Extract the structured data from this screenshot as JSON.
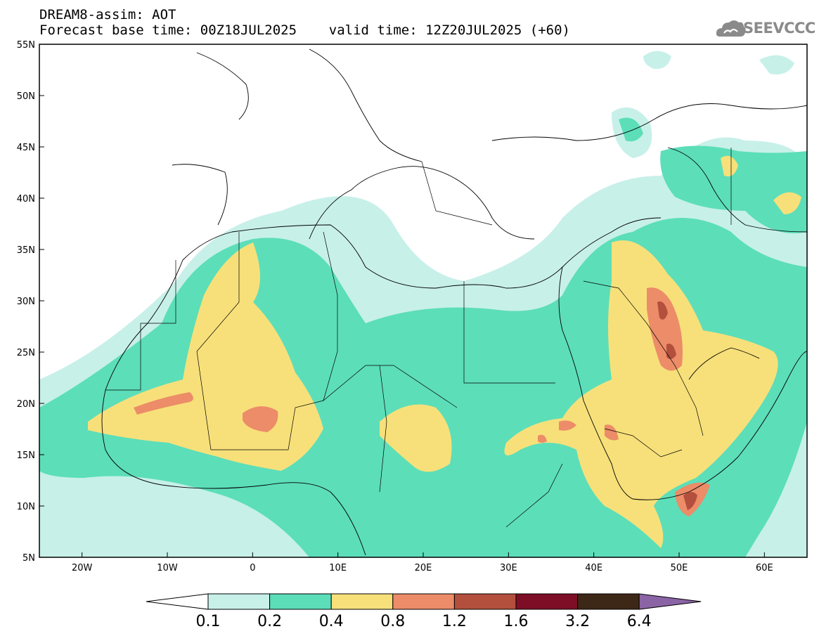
{
  "header": {
    "title_line1": "DREAM8-assim: AOT",
    "title_line2": "Forecast base time: 00Z18JUL2025    valid time: 12Z20JUL2025 (+60)"
  },
  "logo": {
    "text": "SEEVCCC",
    "icon": "cloud-icon",
    "color": "#8a8a8a"
  },
  "map": {
    "lon_range": [
      -25,
      65
    ],
    "lat_range": [
      5,
      55
    ],
    "lon_ticks": [
      {
        "value": -20,
        "label": "20W"
      },
      {
        "value": -10,
        "label": "10W"
      },
      {
        "value": 0,
        "label": "0"
      },
      {
        "value": 10,
        "label": "10E"
      },
      {
        "value": 20,
        "label": "20E"
      },
      {
        "value": 30,
        "label": "30E"
      },
      {
        "value": 40,
        "label": "40E"
      },
      {
        "value": 50,
        "label": "50E"
      },
      {
        "value": 60,
        "label": "60E"
      }
    ],
    "lat_ticks": [
      {
        "value": 55,
        "label": "55N"
      },
      {
        "value": 50,
        "label": "50N"
      },
      {
        "value": 45,
        "label": "45N"
      },
      {
        "value": 40,
        "label": "40N"
      },
      {
        "value": 35,
        "label": "35N"
      },
      {
        "value": 30,
        "label": "30N"
      },
      {
        "value": 25,
        "label": "25N"
      },
      {
        "value": 20,
        "label": "20N"
      },
      {
        "value": 15,
        "label": "15N"
      },
      {
        "value": 10,
        "label": "10N"
      },
      {
        "value": 5,
        "label": "5N"
      }
    ]
  },
  "colorbar": {
    "colors": [
      "#c7f0e9",
      "#5cdeb9",
      "#f7e07a",
      "#ec8c68",
      "#b34f3d",
      "#7e0e26",
      "#3d2716"
    ],
    "over_color": "#8b64a6",
    "under_color": "#ffffff",
    "labels": [
      "0.1",
      "0.2",
      "0.4",
      "0.8",
      "1.2",
      "1.6",
      "3.2",
      "6.4"
    ]
  }
}
